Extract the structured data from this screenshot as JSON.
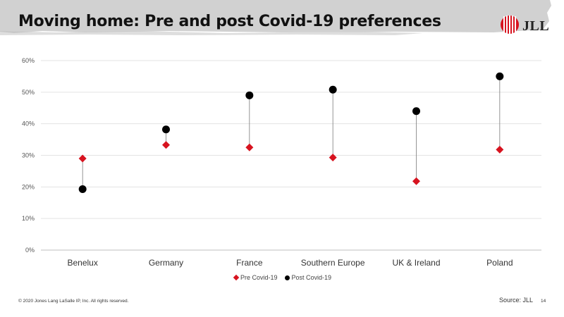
{
  "slide": {
    "title": "Moving home: Pre and post Covid-19 preferences",
    "brand": "JLL",
    "copyright": "© 2020 Jones Lang LaSalle IP, Inc. All rights reserved.",
    "source": "Source: JLL",
    "page_number": "14"
  },
  "colors": {
    "pre": "#d7131f",
    "post": "#000000",
    "brand_red": "#d7131f",
    "band_gray": "#c9c9c9"
  },
  "chart_data": {
    "type": "scatter",
    "subtype": "dumbbell",
    "title": "",
    "xlabel": "",
    "ylabel": "",
    "categories": [
      "Benelux",
      "Germany",
      "France",
      "Southern Europe",
      "UK & Ireland",
      "Poland"
    ],
    "series": [
      {
        "name": "Pre Covid-19",
        "marker": "diamond",
        "color": "#d7131f",
        "values": [
          29,
          33.3,
          32.5,
          29.3,
          21.8,
          31.8
        ]
      },
      {
        "name": "Post Covid-19",
        "marker": "circle",
        "color": "#000000",
        "values": [
          19.3,
          38.2,
          49,
          50.8,
          44,
          55
        ]
      }
    ],
    "ylim": [
      0,
      60
    ],
    "yticks": [
      0,
      10,
      20,
      30,
      40,
      50,
      60
    ],
    "ytick_labels": [
      "0%",
      "10%",
      "20%",
      "30%",
      "40%",
      "50%",
      "60%"
    ],
    "grid": true,
    "legend_position": "bottom"
  }
}
